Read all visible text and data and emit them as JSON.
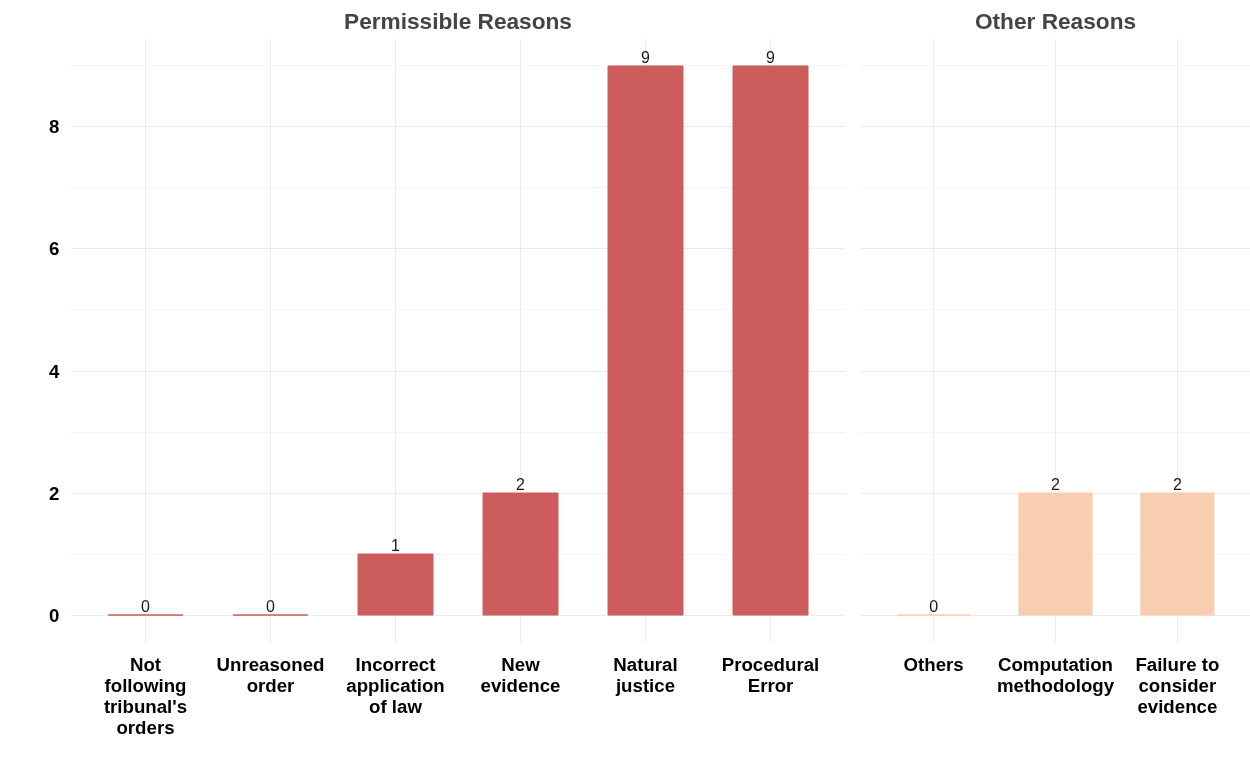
{
  "chart_data": [
    {
      "type": "bar",
      "title": "Permissible Reasons",
      "categories": [
        "Not following tribunal's orders",
        "Unreasoned order",
        "Incorrect application of law",
        "New evidence",
        "Natural justice",
        "Procedural Error"
      ],
      "values": [
        0,
        0,
        1,
        2,
        9,
        9
      ],
      "color": "#cd5c5c",
      "ylim": [
        -0.45,
        9.45
      ],
      "yticks": [
        0,
        2,
        4,
        6,
        8
      ],
      "grid": true,
      "data_labels": true
    },
    {
      "type": "bar",
      "title": "Other Reasons",
      "categories": [
        "Others",
        "Computation methodology",
        "Failure to consider evidence"
      ],
      "values": [
        0,
        2,
        2
      ],
      "color": "#f9cdb0",
      "ylim": [
        -0.45,
        9.45
      ],
      "yticks": [
        0,
        2,
        4,
        6,
        8
      ],
      "grid": true,
      "data_labels": true,
      "tick_labels": "x"
    }
  ]
}
